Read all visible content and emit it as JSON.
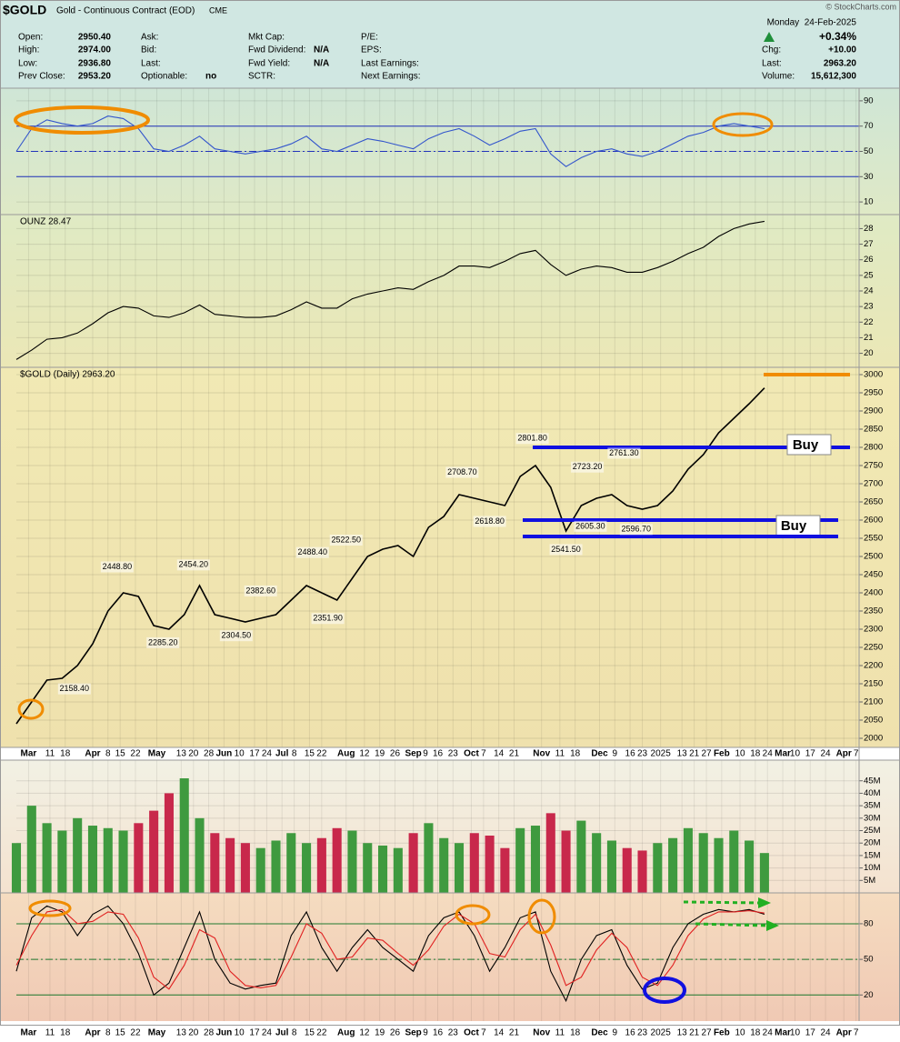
{
  "header": {
    "symbol": "$GOLD",
    "name": "Gold - Continuous Contract (EOD)",
    "exchange": "CME",
    "copyright": "© StockCharts.com",
    "date": "Monday  24-Feb-2025",
    "change_pct": "+0.34%",
    "col1": [
      [
        "Open:",
        "2950.40"
      ],
      [
        "High:",
        "2974.00"
      ],
      [
        "Low:",
        "2936.80"
      ],
      [
        "Prev Close:",
        "2953.20"
      ]
    ],
    "col2": [
      [
        "Ask:"
      ],
      [
        "Bid:"
      ],
      [
        "Last:"
      ],
      [
        "Optionable:",
        "no"
      ]
    ],
    "col3": [
      [
        "Mkt Cap:"
      ],
      [
        "Fwd Dividend:",
        "N/A"
      ],
      [
        "Fwd Yield:",
        "N/A"
      ],
      [
        "SCTR:"
      ]
    ],
    "col4": [
      [
        "P/E:"
      ],
      [
        "EPS:"
      ],
      [
        "Last Earnings:"
      ],
      [
        "Next Earnings:"
      ]
    ],
    "col5": [
      [
        "Chg:",
        "+10.00"
      ],
      [
        "Last:",
        "2963.20"
      ],
      [
        "Volume:",
        "15,612,300"
      ]
    ]
  },
  "chart_data": [
    {
      "type": "line",
      "xlim": [
        0,
        276
      ],
      "ylim": [
        0,
        100
      ],
      "yticks": [
        90,
        70,
        50,
        30,
        10
      ],
      "bands": [
        30,
        70
      ],
      "midline": 50,
      "x": [
        0,
        5,
        10,
        15,
        20,
        25,
        30,
        35,
        40,
        45,
        50,
        55,
        60,
        65,
        70,
        75,
        80,
        85,
        90,
        95,
        100,
        105,
        110,
        115,
        120,
        125,
        130,
        135,
        140,
        145,
        150,
        155,
        160,
        165,
        170,
        175,
        180,
        185,
        190,
        195,
        200,
        205,
        210,
        215,
        220,
        225,
        230,
        235,
        240,
        245
      ],
      "series": [
        {
          "color": "#3355cc",
          "values": [
            50,
            68,
            75,
            72,
            70,
            72,
            78,
            76,
            68,
            52,
            50,
            55,
            62,
            52,
            50,
            48,
            50,
            52,
            56,
            62,
            52,
            50,
            55,
            60,
            58,
            55,
            52,
            60,
            65,
            68,
            62,
            55,
            60,
            66,
            68,
            48,
            38,
            45,
            50,
            52,
            48,
            46,
            50,
            56,
            62,
            65,
            70,
            72,
            70,
            68
          ]
        }
      ]
    },
    {
      "type": "line",
      "title": "OUNZ 28.47",
      "xlim": [
        0,
        276
      ],
      "ylim": [
        19.1,
        28.9
      ],
      "yticks": [
        20,
        21,
        22,
        23,
        24,
        25,
        26,
        27,
        28
      ],
      "x": [
        0,
        5,
        10,
        15,
        20,
        25,
        30,
        35,
        40,
        45,
        50,
        55,
        60,
        65,
        70,
        75,
        80,
        85,
        90,
        95,
        100,
        105,
        110,
        115,
        120,
        125,
        130,
        135,
        140,
        145,
        150,
        155,
        160,
        165,
        170,
        175,
        180,
        185,
        190,
        195,
        200,
        205,
        210,
        215,
        220,
        225,
        230,
        235,
        240,
        245
      ],
      "series": [
        {
          "color": "#000000",
          "values": [
            19.6,
            20.2,
            20.9,
            21.0,
            21.3,
            21.9,
            22.6,
            23.0,
            22.9,
            22.4,
            22.3,
            22.6,
            23.1,
            22.5,
            22.4,
            22.3,
            22.3,
            22.4,
            22.8,
            23.3,
            22.9,
            22.9,
            23.5,
            23.8,
            24.0,
            24.2,
            24.1,
            24.6,
            25.0,
            25.6,
            25.6,
            25.5,
            25.9,
            26.4,
            26.6,
            25.7,
            25.0,
            25.4,
            25.6,
            25.5,
            25.2,
            25.2,
            25.5,
            25.9,
            26.4,
            26.8,
            27.5,
            28.0,
            28.3,
            28.47
          ]
        }
      ]
    },
    {
      "type": "line",
      "title": "$GOLD (Daily) 2963.20",
      "xlim": [
        0,
        276
      ],
      "ylim": [
        1975,
        3020
      ],
      "yticks": [
        2000,
        2050,
        2100,
        2150,
        2200,
        2250,
        2300,
        2350,
        2400,
        2450,
        2500,
        2550,
        2600,
        2650,
        2700,
        2750,
        2800,
        2850,
        2900,
        2950,
        3000
      ],
      "xticks": [
        {
          "value": 4,
          "label": "Mar"
        },
        {
          "value": 11,
          "label": "11"
        },
        {
          "value": 16,
          "label": "18"
        },
        {
          "value": 25,
          "label": "Apr"
        },
        {
          "value": 30,
          "label": "8"
        },
        {
          "value": 34,
          "label": "15"
        },
        {
          "value": 39,
          "label": "22"
        },
        {
          "value": 46,
          "label": "May"
        },
        {
          "value": 54,
          "label": "13"
        },
        {
          "value": 58,
          "label": "20"
        },
        {
          "value": 63,
          "label": "28"
        },
        {
          "value": 68,
          "label": "Jun"
        },
        {
          "value": 73,
          "label": "10"
        },
        {
          "value": 78,
          "label": "17"
        },
        {
          "value": 82,
          "label": "24"
        },
        {
          "value": 87,
          "label": "Jul"
        },
        {
          "value": 91,
          "label": "8"
        },
        {
          "value": 96,
          "label": "15"
        },
        {
          "value": 100,
          "label": "22"
        },
        {
          "value": 108,
          "label": "Aug"
        },
        {
          "value": 114,
          "label": "12"
        },
        {
          "value": 119,
          "label": "19"
        },
        {
          "value": 124,
          "label": "26"
        },
        {
          "value": 130,
          "label": "Sep"
        },
        {
          "value": 134,
          "label": "9"
        },
        {
          "value": 138,
          "label": "16"
        },
        {
          "value": 143,
          "label": "23"
        },
        {
          "value": 149,
          "label": "Oct"
        },
        {
          "value": 153,
          "label": "7"
        },
        {
          "value": 158,
          "label": "14"
        },
        {
          "value": 163,
          "label": "21"
        },
        {
          "value": 172,
          "label": "Nov"
        },
        {
          "value": 178,
          "label": "11"
        },
        {
          "value": 183,
          "label": "18"
        },
        {
          "value": 191,
          "label": "Dec"
        },
        {
          "value": 196,
          "label": "9"
        },
        {
          "value": 201,
          "label": "16"
        },
        {
          "value": 205,
          "label": "23"
        },
        {
          "value": 211,
          "label": "2025"
        },
        {
          "value": 218,
          "label": "13"
        },
        {
          "value": 222,
          "label": "21"
        },
        {
          "value": 226,
          "label": "27"
        },
        {
          "value": 231,
          "label": "Feb"
        },
        {
          "value": 237,
          "label": "10"
        },
        {
          "value": 242,
          "label": "18"
        },
        {
          "value": 246,
          "label": "24"
        },
        {
          "value": 251,
          "label": "Mar"
        },
        {
          "value": 255,
          "label": "10"
        },
        {
          "value": 260,
          "label": "17"
        },
        {
          "value": 265,
          "label": "24"
        },
        {
          "value": 271,
          "label": "Apr"
        },
        {
          "value": 275,
          "label": "7"
        }
      ],
      "x": [
        0,
        5,
        10,
        15,
        20,
        25,
        30,
        35,
        40,
        45,
        50,
        55,
        60,
        65,
        70,
        75,
        80,
        85,
        90,
        95,
        100,
        105,
        110,
        115,
        120,
        125,
        130,
        135,
        140,
        145,
        150,
        155,
        160,
        165,
        170,
        175,
        180,
        185,
        190,
        195,
        200,
        205,
        210,
        215,
        220,
        225,
        230,
        235,
        240,
        245
      ],
      "series": [
        {
          "color": "#000000",
          "values": [
            2040,
            2100,
            2160,
            2165,
            2200,
            2260,
            2350,
            2400,
            2390,
            2310,
            2300,
            2340,
            2420,
            2340,
            2330,
            2320,
            2330,
            2340,
            2380,
            2420,
            2400,
            2380,
            2440,
            2500,
            2520,
            2530,
            2500,
            2580,
            2610,
            2670,
            2660,
            2650,
            2640,
            2720,
            2750,
            2690,
            2570,
            2640,
            2660,
            2670,
            2640,
            2630,
            2640,
            2680,
            2740,
            2780,
            2840,
            2880,
            2920,
            2963.2
          ]
        }
      ],
      "price_labels": [
        {
          "x": 169,
          "value": 2801.8,
          "label": "2801.80"
        },
        {
          "x": 146,
          "value": 2708.7,
          "label": "2708.70"
        },
        {
          "x": 155,
          "value": 2618.8,
          "label": "2618.80"
        },
        {
          "x": 199,
          "value": 2761.3,
          "label": "2761.30"
        },
        {
          "x": 187,
          "value": 2723.2,
          "label": "2723.20"
        },
        {
          "x": 188,
          "value": 2605.3,
          "label": "2605.30"
        },
        {
          "x": 180,
          "value": 2541.5,
          "label": "2541.50"
        },
        {
          "x": 203,
          "value": 2596.7,
          "label": "2596.70"
        },
        {
          "x": 108,
          "value": 2522.5,
          "label": "2522.50"
        },
        {
          "x": 97,
          "value": 2488.4,
          "label": "2488.40"
        },
        {
          "x": 58,
          "value": 2454.2,
          "label": "2454.20"
        },
        {
          "x": 33,
          "value": 2448.8,
          "label": "2448.80"
        },
        {
          "x": 80,
          "value": 2382.6,
          "label": "2382.60"
        },
        {
          "x": 102,
          "value": 2351.9,
          "label": "2351.90"
        },
        {
          "x": 72,
          "value": 2304.5,
          "label": "2304.50"
        },
        {
          "x": 48,
          "value": 2285.2,
          "label": "2285.20"
        },
        {
          "x": 19,
          "value": 2158.4,
          "label": "2158.40"
        }
      ],
      "levels": [
        {
          "value": 2800,
          "color": "#1010e0",
          "label": "Buy"
        },
        {
          "value": 2600,
          "color": "#1010e0",
          "label": "Buy"
        },
        {
          "value": 2555,
          "color": "#1010e0"
        },
        {
          "value": 3000,
          "color": "#f08c00"
        }
      ]
    },
    {
      "type": "bar",
      "xlim": [
        0,
        276
      ],
      "ylim": [
        0,
        53.3
      ],
      "yticks": [
        {
          "value": 5,
          "label": "5M"
        },
        {
          "value": 10,
          "label": "10M"
        },
        {
          "value": 15,
          "label": "15M"
        },
        {
          "value": 20,
          "label": "20M"
        },
        {
          "value": 25,
          "label": "25M"
        },
        {
          "value": 30,
          "label": "30M"
        },
        {
          "value": 35,
          "label": "35M"
        },
        {
          "value": 40,
          "label": "40M"
        },
        {
          "value": 45,
          "label": "45M"
        }
      ],
      "x": [
        0,
        5,
        10,
        15,
        20,
        25,
        30,
        35,
        40,
        45,
        50,
        55,
        60,
        65,
        70,
        75,
        80,
        85,
        90,
        95,
        100,
        105,
        110,
        115,
        120,
        125,
        130,
        135,
        140,
        145,
        150,
        155,
        160,
        165,
        170,
        175,
        180,
        185,
        190,
        195,
        200,
        205,
        210,
        215,
        220,
        225,
        230,
        235,
        240,
        245
      ],
      "colors": [
        "#3f9a3f",
        "#c8284b"
      ],
      "values": [
        20,
        35,
        28,
        25,
        30,
        27,
        26,
        25,
        28,
        33,
        40,
        46,
        30,
        24,
        22,
        20,
        18,
        21,
        24,
        20,
        22,
        26,
        25,
        20,
        19,
        18,
        24,
        28,
        22,
        20,
        24,
        23,
        18,
        26,
        27,
        32,
        25,
        29,
        24,
        21,
        18,
        17,
        20,
        22,
        26,
        24,
        22,
        25,
        21,
        16
      ]
    },
    {
      "type": "line",
      "xlim": [
        0,
        276
      ],
      "ylim": [
        -2,
        106
      ],
      "yticks": [
        80,
        50,
        20
      ],
      "bands": [
        20,
        80
      ],
      "midline": 50,
      "x": [
        0,
        5,
        10,
        15,
        20,
        25,
        30,
        35,
        40,
        45,
        50,
        55,
        60,
        65,
        70,
        75,
        80,
        85,
        90,
        95,
        100,
        105,
        110,
        115,
        120,
        125,
        130,
        135,
        140,
        145,
        150,
        155,
        160,
        165,
        170,
        175,
        180,
        185,
        190,
        195,
        200,
        205,
        210,
        215,
        220,
        225,
        230,
        235,
        240,
        245
      ],
      "series": [
        {
          "color": "#000000",
          "values": [
            40,
            85,
            95,
            90,
            70,
            88,
            95,
            80,
            55,
            20,
            30,
            60,
            90,
            50,
            30,
            25,
            28,
            30,
            70,
            90,
            60,
            40,
            60,
            75,
            60,
            50,
            40,
            70,
            85,
            90,
            70,
            40,
            60,
            85,
            90,
            40,
            15,
            50,
            70,
            75,
            45,
            25,
            30,
            60,
            80,
            88,
            92,
            90,
            92,
            88
          ]
        },
        {
          "color": "#e02020",
          "values": [
            45,
            70,
            90,
            92,
            80,
            82,
            90,
            88,
            68,
            35,
            25,
            45,
            75,
            68,
            40,
            28,
            26,
            28,
            52,
            80,
            72,
            50,
            52,
            68,
            66,
            55,
            45,
            58,
            78,
            88,
            80,
            55,
            52,
            75,
            88,
            62,
            28,
            35,
            58,
            72,
            60,
            35,
            28,
            45,
            70,
            84,
            90,
            90,
            91,
            89
          ]
        }
      ]
    }
  ]
}
